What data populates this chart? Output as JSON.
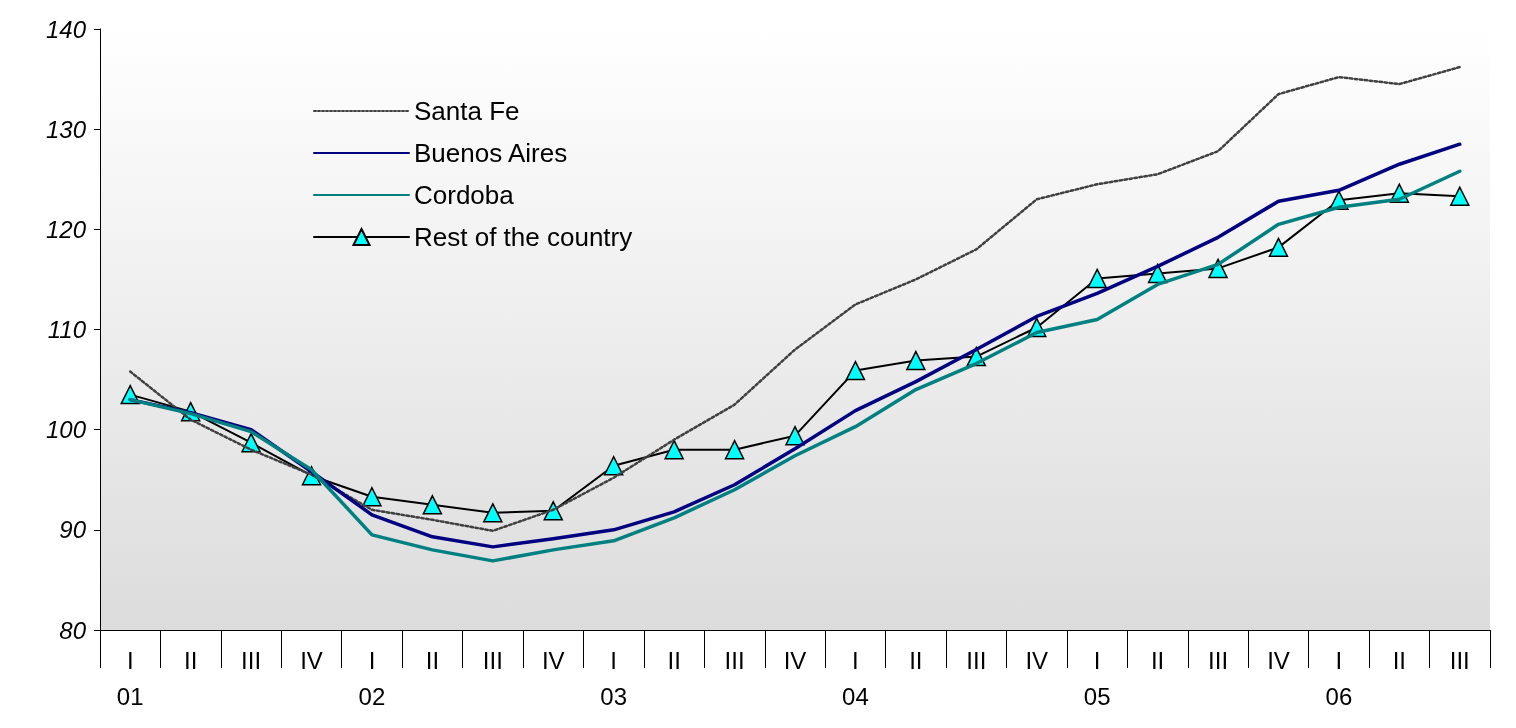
{
  "chart_data": {
    "type": "line",
    "categories": [
      "I\n01",
      "II",
      "III",
      "IV",
      "I\n02",
      "II",
      "III",
      "IV",
      "I\n03",
      "II",
      "III",
      "IV",
      "I\n04",
      "II",
      "III",
      "IV",
      "I\n05",
      "II",
      "III",
      "IV",
      "I\n06",
      "II",
      "III"
    ],
    "series": [
      {
        "name": "Santa Fe",
        "color": "#404040",
        "line_style": "dotted",
        "marker": "none",
        "values": [
          105.8,
          101.0,
          98.0,
          95.5,
          92.0,
          91.0,
          89.9,
          92.0,
          95.2,
          99.0,
          102.5,
          108.0,
          112.5,
          115.0,
          118.0,
          123.0,
          124.5,
          125.5,
          127.8,
          133.5,
          135.2,
          134.5,
          136.2
        ]
      },
      {
        "name": "Buenos Aires",
        "color": "#000080",
        "line_style": "solid",
        "marker": "none",
        "values": [
          103.0,
          101.7,
          100.0,
          95.8,
          91.5,
          89.3,
          88.3,
          89.1,
          90.0,
          91.8,
          94.5,
          98.1,
          101.9,
          104.8,
          108.0,
          111.3,
          113.6,
          116.3,
          119.2,
          122.8,
          123.9,
          126.5,
          128.5
        ]
      },
      {
        "name": "Cordoba",
        "color": "#008080",
        "line_style": "solid",
        "marker": "none",
        "values": [
          103.0,
          101.6,
          99.8,
          96.0,
          89.5,
          88.0,
          86.9,
          88.0,
          88.9,
          91.2,
          94.0,
          97.4,
          100.3,
          104.0,
          106.6,
          109.7,
          111.0,
          114.5,
          116.5,
          120.5,
          122.2,
          123.0,
          125.8
        ]
      },
      {
        "name": "Rest of the country",
        "color": "#00ffff",
        "line_style": "solid",
        "marker": "triangle",
        "values": [
          103.5,
          101.8,
          98.7,
          95.4,
          93.3,
          92.5,
          91.7,
          91.9,
          96.4,
          98.0,
          98.0,
          99.4,
          105.9,
          106.9,
          107.3,
          110.2,
          115.1,
          115.6,
          116.1,
          118.2,
          122.9,
          123.6,
          123.3
        ]
      }
    ],
    "ylim": [
      80,
      140
    ],
    "yticks": [
      80,
      90,
      100,
      110,
      120,
      130,
      140
    ],
    "grid": false,
    "legend": "top left"
  }
}
